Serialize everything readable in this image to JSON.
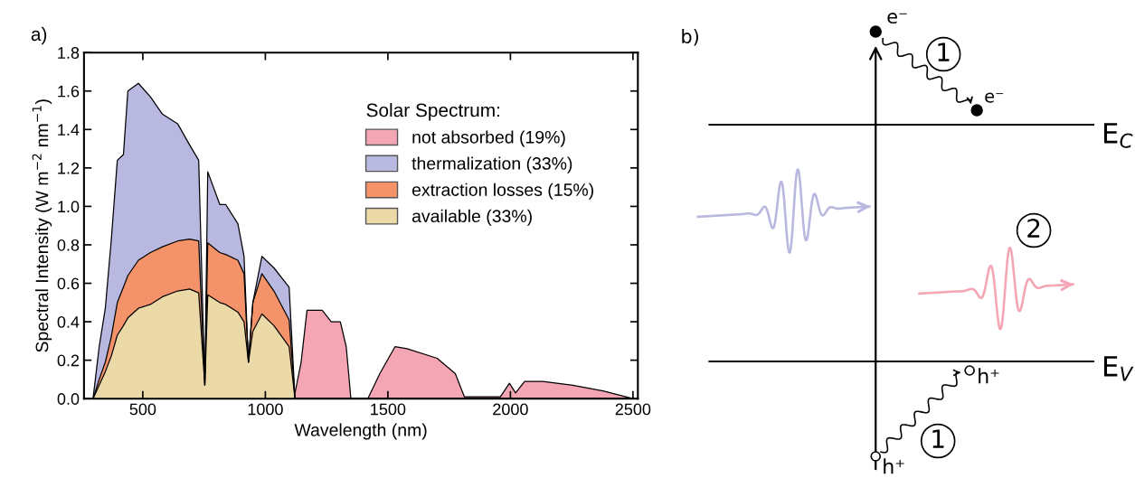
{
  "chart_data": [
    {
      "type": "area",
      "stacked": true,
      "annotations": [
        "a)"
      ],
      "xlabel": "Wavelength (nm)",
      "ylabel": "Spectral Intensity (W m$^{−2}$ nm$^{−1}$)",
      "legend_title": "Solar Spectrum:",
      "legend": "top right",
      "grid": false,
      "x": [
        297,
        322,
        347,
        371,
        396,
        421,
        439,
        482,
        531,
        580,
        642,
        691,
        728,
        753,
        765,
        814,
        838,
        888,
        913,
        931,
        949,
        986,
        1035,
        1097,
        1121,
        1146,
        1170,
        1232,
        1269,
        1306,
        1330,
        1349,
        1418,
        1467,
        1529,
        1578,
        1701,
        1775,
        1812,
        1959,
        1996,
        2021,
        2058,
        2132,
        2255,
        2378,
        2501
      ],
      "xlim": [
        260,
        2520
      ],
      "xticks": [
        500,
        1000,
        1500,
        2000,
        2500
      ],
      "ylim": [
        0,
        1.8
      ],
      "yticks": [
        {
          "value": 0,
          "label": "0.0"
        },
        0.2,
        0.4,
        0.6,
        0.8,
        {
          "value": 1,
          "label": "1.0"
        },
        1.2,
        1.4,
        1.6,
        1.8
      ],
      "series": [
        {
          "name": "available (33%)",
          "color": "#ecd9a8",
          "values": [
            0,
            0.07,
            0.14,
            0.22,
            0.33,
            0.38,
            0.42,
            0.47,
            0.49,
            0.53,
            0.56,
            0.57,
            0.55,
            0.07,
            0.54,
            0.5,
            0.49,
            0.45,
            0.4,
            0.19,
            0.35,
            0.44,
            0.38,
            0.27,
            0,
            0,
            0,
            0,
            0,
            0,
            0,
            0,
            0,
            0,
            0,
            0,
            0,
            0,
            0,
            0,
            0,
            0,
            0,
            0,
            0,
            0,
            0
          ]
        },
        {
          "name": "extraction losses (15%)",
          "color": "#f4936a",
          "values": [
            0,
            0.03,
            0.05,
            0.1,
            0.17,
            0.2,
            0.22,
            0.25,
            0.27,
            0.26,
            0.26,
            0.26,
            0.27,
            0,
            0.27,
            0.26,
            0.26,
            0.27,
            0.25,
            0,
            0.15,
            0.21,
            0.18,
            0.14,
            0,
            0,
            0,
            0,
            0,
            0,
            0,
            0,
            0,
            0,
            0,
            0,
            0,
            0,
            0,
            0,
            0,
            0,
            0,
            0,
            0,
            0,
            0
          ]
        },
        {
          "name": "thermalization (33%)",
          "color": "#b8b8e0",
          "values": [
            0,
            0.17,
            0.28,
            0.5,
            0.74,
            0.69,
            0.96,
            0.92,
            0.81,
            0.69,
            0.61,
            0.49,
            0.42,
            0,
            0.37,
            0.25,
            0.26,
            0.19,
            0.09,
            0,
            0,
            0.09,
            0.12,
            0.17,
            0,
            0,
            0,
            0,
            0,
            0,
            0,
            0,
            0,
            0,
            0,
            0,
            0,
            0,
            0,
            0,
            0,
            0,
            0,
            0,
            0,
            0,
            0
          ]
        },
        {
          "name": "not absorbed (19%)",
          "color": "#f4a6b4",
          "values": [
            null,
            null,
            null,
            null,
            null,
            null,
            null,
            null,
            null,
            null,
            null,
            null,
            null,
            null,
            null,
            null,
            null,
            null,
            null,
            null,
            null,
            null,
            null,
            null,
            0.03,
            0.19,
            0.46,
            0.46,
            0.4,
            0.4,
            0.27,
            0,
            0,
            0.13,
            0.27,
            0.26,
            0.21,
            0.13,
            0.01,
            0.01,
            0.08,
            0.03,
            0.09,
            0.09,
            0.07,
            0.04,
            0
          ]
        }
      ]
    },
    {
      "type": "other",
      "annotations": [
        "b)",
        "e⁻",
        "e⁻",
        "h⁺",
        "h⁺",
        "E$_{C}$",
        "E$_{V}$",
        "1",
        "2",
        "1"
      ]
    }
  ]
}
